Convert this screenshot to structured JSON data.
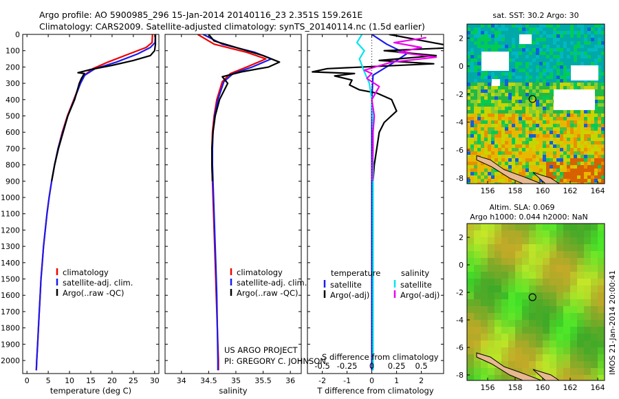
{
  "header": {
    "line1": "Argo profile: AO 5900985_296 15-Jan-2014 20140116_23 2.351S 159.261E",
    "line2": "Climatology: CARS2009. Satellite-adjusted climatology: synTS_20140114.nc (1.5d earlier)"
  },
  "colors": {
    "climatology": "#ee0000",
    "satellite": "#1a1aee",
    "argo": "#000000",
    "salinity_satellite": "#00e5ee",
    "salinity_argo": "#ee00ee",
    "map_land": "#e8b890"
  },
  "chart_data": [
    {
      "type": "line",
      "name": "temperature-profile",
      "xlabel": "temperature (deg C)",
      "xlim": [
        -1,
        31
      ],
      "ylim": [
        2080,
        0
      ],
      "x_ticks": [
        0,
        5,
        10,
        15,
        20,
        25,
        30
      ],
      "y_ticks": [
        0,
        100,
        200,
        300,
        400,
        500,
        600,
        700,
        800,
        900,
        1000,
        1100,
        1200,
        1300,
        1400,
        1500,
        1600,
        1700,
        1800,
        1900,
        2000
      ],
      "legend": [
        "climatology",
        "satellite-adj. clim.",
        "Argo(..raw -QC)"
      ],
      "series": [
        {
          "name": "climatology",
          "points": [
            [
              29.5,
              0
            ],
            [
              29.4,
              50
            ],
            [
              28,
              80
            ],
            [
              24,
              120
            ],
            [
              19,
              170
            ],
            [
              15.5,
              210
            ],
            [
              13.5,
              250
            ],
            [
              12.5,
              300
            ],
            [
              11,
              400
            ],
            [
              9.5,
              500
            ],
            [
              8.3,
              600
            ],
            [
              7.3,
              700
            ],
            [
              6.5,
              800
            ],
            [
              5.8,
              900
            ],
            [
              5.2,
              1000
            ],
            [
              4.7,
              1100
            ],
            [
              4.3,
              1200
            ],
            [
              3.9,
              1300
            ],
            [
              3.6,
              1400
            ],
            [
              3.3,
              1500
            ],
            [
              3.1,
              1600
            ],
            [
              2.9,
              1700
            ],
            [
              2.7,
              1800
            ],
            [
              2.5,
              1900
            ],
            [
              2.3,
              2000
            ],
            [
              2.2,
              2060
            ]
          ]
        },
        {
          "name": "satellite-adj. clim.",
          "points": [
            [
              30.2,
              0
            ],
            [
              30.1,
              50
            ],
            [
              29,
              80
            ],
            [
              26,
              120
            ],
            [
              21,
              170
            ],
            [
              16,
              210
            ],
            [
              13.6,
              250
            ],
            [
              12.6,
              300
            ],
            [
              11.1,
              400
            ],
            [
              9.6,
              500
            ],
            [
              8.4,
              600
            ],
            [
              7.3,
              700
            ],
            [
              6.5,
              800
            ],
            [
              5.8,
              900
            ],
            [
              5.2,
              1000
            ],
            [
              4.7,
              1100
            ],
            [
              4.3,
              1200
            ],
            [
              3.9,
              1300
            ],
            [
              3.6,
              1400
            ],
            [
              3.3,
              1500
            ],
            [
              3.1,
              1600
            ],
            [
              2.9,
              1700
            ],
            [
              2.7,
              1800
            ],
            [
              2.5,
              1900
            ],
            [
              2.3,
              2000
            ],
            [
              2.2,
              2060
            ]
          ]
        },
        {
          "name": "Argo(..raw -QC)",
          "points": [
            [
              30.2,
              0
            ],
            [
              30.2,
              60
            ],
            [
              30,
              100
            ],
            [
              29,
              130
            ],
            [
              25,
              160
            ],
            [
              20,
              190
            ],
            [
              15,
              215
            ],
            [
              12,
              235
            ],
            [
              13.5,
              240
            ],
            [
              12.8,
              270
            ],
            [
              12.3,
              300
            ],
            [
              11.2,
              400
            ],
            [
              9.6,
              500
            ],
            [
              8.5,
              600
            ],
            [
              7.4,
              700
            ],
            [
              6.5,
              800
            ],
            [
              5.8,
              900
            ]
          ]
        }
      ]
    },
    {
      "type": "line",
      "name": "salinity-profile",
      "xlabel": "salinity",
      "xlim": [
        33.7,
        36.2
      ],
      "ylim": [
        2080,
        0
      ],
      "x_ticks": [
        34,
        34.5,
        35,
        35.5,
        36
      ],
      "legend": [
        "climatology",
        "satellite-adj. clim.",
        "Argo(..raw -QC)"
      ],
      "annotation": [
        "US ARGO PROJECT",
        "PI: GREGORY C. JOHNSON"
      ],
      "series": [
        {
          "name": "climatology",
          "points": [
            [
              34.3,
              0
            ],
            [
              34.6,
              60
            ],
            [
              35.2,
              110
            ],
            [
              35.55,
              150
            ],
            [
              35.2,
              200
            ],
            [
              34.9,
              240
            ],
            [
              34.75,
              290
            ],
            [
              34.65,
              400
            ],
            [
              34.6,
              500
            ],
            [
              34.57,
              600
            ],
            [
              34.56,
              700
            ],
            [
              34.56,
              800
            ],
            [
              34.57,
              900
            ],
            [
              34.58,
              1000
            ],
            [
              34.6,
              1200
            ],
            [
              34.62,
              1400
            ],
            [
              34.64,
              1600
            ],
            [
              34.66,
              1800
            ],
            [
              34.68,
              2000
            ],
            [
              34.68,
              2060
            ]
          ]
        },
        {
          "name": "satellite-adj. clim.",
          "points": [
            [
              34.4,
              0
            ],
            [
              34.75,
              60
            ],
            [
              35.35,
              110
            ],
            [
              35.65,
              150
            ],
            [
              35.3,
              200
            ],
            [
              34.95,
              240
            ],
            [
              34.78,
              290
            ],
            [
              34.67,
              400
            ],
            [
              34.61,
              500
            ],
            [
              34.58,
              600
            ],
            [
              34.57,
              700
            ],
            [
              34.57,
              800
            ],
            [
              34.58,
              900
            ],
            [
              34.59,
              1000
            ],
            [
              34.61,
              1200
            ],
            [
              34.63,
              1400
            ],
            [
              34.65,
              1600
            ],
            [
              34.66,
              1800
            ],
            [
              34.67,
              2000
            ],
            [
              34.67,
              2060
            ]
          ]
        },
        {
          "name": "Argo(..raw -QC)",
          "points": [
            [
              34.5,
              0
            ],
            [
              34.6,
              40
            ],
            [
              34.9,
              70
            ],
            [
              35.2,
              100
            ],
            [
              35.5,
              130
            ],
            [
              35.8,
              170
            ],
            [
              35.6,
              200
            ],
            [
              35.1,
              230
            ],
            [
              34.75,
              260
            ],
            [
              34.85,
              300
            ],
            [
              34.7,
              400
            ],
            [
              34.62,
              500
            ],
            [
              34.58,
              600
            ],
            [
              34.56,
              700
            ],
            [
              34.56,
              800
            ],
            [
              34.57,
              900
            ]
          ]
        }
      ]
    },
    {
      "type": "line",
      "name": "difference-profile",
      "xlabel": "T difference from climatology",
      "xlabel2": "S difference from climatology",
      "xlim": [
        -2.6,
        2.9
      ],
      "ylim": [
        2080,
        0
      ],
      "x_ticks": [
        -2,
        -1,
        0,
        1,
        2
      ],
      "x_ticks_salinity_labels": [
        "-0.5",
        "-0.25",
        "0",
        "0.25",
        "0.5"
      ],
      "legend_titles": [
        "temperature",
        "salinity"
      ],
      "legend": [
        "satellite",
        "Argo(-adj)",
        "satellite",
        "Argo(-adj)"
      ],
      "series": [
        {
          "name": "temperature satellite",
          "points": [
            [
              0,
              0
            ],
            [
              0.6,
              60
            ],
            [
              1.4,
              120
            ],
            [
              0.8,
              180
            ],
            [
              0.05,
              250
            ],
            [
              0,
              400
            ],
            [
              0,
              700
            ],
            [
              0,
              1000
            ],
            [
              0,
              1400
            ],
            [
              0,
              1800
            ],
            [
              0,
              2060
            ]
          ]
        },
        {
          "name": "temperature Argo(-adj)",
          "points": [
            [
              0.7,
              0
            ],
            [
              3.5,
              80
            ],
            [
              0.5,
              100
            ],
            [
              2.6,
              130
            ],
            [
              0.3,
              160
            ],
            [
              2.5,
              180
            ],
            [
              -1.8,
              210
            ],
            [
              -2.4,
              230
            ],
            [
              -0.7,
              240
            ],
            [
              -1.5,
              255
            ],
            [
              -0.8,
              280
            ],
            [
              -0.9,
              310
            ],
            [
              -0.5,
              340
            ],
            [
              0.2,
              360
            ],
            [
              0.8,
              400
            ],
            [
              1.0,
              470
            ],
            [
              0.5,
              540
            ],
            [
              0.3,
              600
            ],
            [
              0.2,
              700
            ],
            [
              0.1,
              800
            ],
            [
              0.05,
              900
            ]
          ]
        },
        {
          "name": "salinity satellite",
          "points": [
            [
              -0.4,
              0
            ],
            [
              -0.6,
              50
            ],
            [
              -0.3,
              100
            ],
            [
              -0.5,
              150
            ],
            [
              -0.3,
              230
            ],
            [
              -0.1,
              300
            ],
            [
              0,
              400
            ],
            [
              0.05,
              600
            ],
            [
              0.05,
              900
            ],
            [
              0.05,
              1300
            ],
            [
              0.05,
              1700
            ],
            [
              0.05,
              2060
            ]
          ]
        },
        {
          "name": "salinity Argo(-adj)",
          "points": [
            [
              2.2,
              20
            ],
            [
              0.9,
              50
            ],
            [
              2.0,
              80
            ],
            [
              1.1,
              110
            ],
            [
              2.6,
              140
            ],
            [
              0.8,
              170
            ],
            [
              -0.3,
              220
            ],
            [
              0.0,
              240
            ],
            [
              -0.2,
              270
            ],
            [
              0.3,
              320
            ],
            [
              0.0,
              400
            ],
            [
              0.1,
              500
            ],
            [
              0.05,
              600
            ],
            [
              0.05,
              700
            ],
            [
              0.02,
              800
            ],
            [
              0.02,
              900
            ]
          ]
        }
      ]
    },
    {
      "type": "heatmap",
      "name": "sst-map",
      "title": "sat. SST: 30.2 Argo: 30",
      "xlim": [
        154.5,
        164.5
      ],
      "ylim": [
        -8.4,
        3
      ],
      "x_ticks": [
        156,
        158,
        160,
        162,
        164
      ],
      "y_ticks": [
        2,
        0,
        -2,
        -4,
        -6,
        -8
      ],
      "argo_position": {
        "lon": 159.261,
        "lat": -2.351
      }
    },
    {
      "type": "heatmap",
      "name": "sla-map",
      "title": "Altim. SLA: 0.069",
      "subtitle": "Argo h1000: 0.044 h2000: NaN",
      "xlim": [
        154.5,
        164.5
      ],
      "ylim": [
        -8.4,
        3
      ],
      "x_ticks": [
        156,
        158,
        160,
        162,
        164
      ],
      "y_ticks": [
        2,
        0,
        -2,
        -4,
        -6,
        -8
      ],
      "argo_position": {
        "lon": 159.261,
        "lat": -2.351
      }
    }
  ],
  "footer": {
    "stamp": "IMOS 21-Jan-2014 20:00:41"
  }
}
